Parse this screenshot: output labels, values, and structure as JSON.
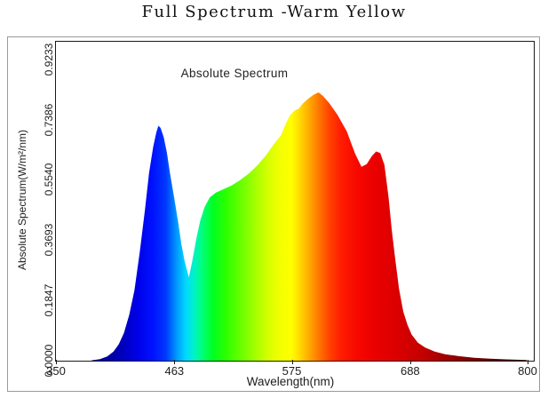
{
  "title": "Full Spectrum -Warm Yellow",
  "chart": {
    "annotation": "Absolute Spectrum",
    "xlabel": "Wavelength(nm)",
    "ylabel": "Absolute Spectrum(W/m²/nm)"
  },
  "colors": {
    "background": "#ffffff",
    "text": "#1c1c1c",
    "figure_border": "#9a9a9a",
    "axis": "#1a1a1a"
  },
  "chart_data": {
    "type": "area",
    "title": "Absolute Spectrum",
    "xlabel": "Wavelength(nm)",
    "ylabel": "Absolute Spectrum(W/m²/nm)",
    "unit": "W/m²/nm",
    "xlim": [
      350,
      800
    ],
    "ylim": [
      0,
      0.9771
    ],
    "grid": false,
    "legend": false,
    "x_ticks": [
      {
        "label": "350",
        "value": 350
      },
      {
        "label": "463",
        "value": 463
      },
      {
        "label": "575",
        "value": 575
      },
      {
        "label": "688",
        "value": 688
      },
      {
        "label": "800",
        "value": 800
      }
    ],
    "y_ticks": [
      {
        "label": "0.0000",
        "value": 0.0
      },
      {
        "label": "0.1847",
        "value": 0.1847
      },
      {
        "label": "0.3693",
        "value": 0.3693
      },
      {
        "label": "0.5540",
        "value": 0.554
      },
      {
        "label": "0.7386",
        "value": 0.7386
      },
      {
        "label": "0.9233",
        "value": 0.9233
      }
    ],
    "features": {
      "blue_peak": {
        "wavelength_nm": 448,
        "value": 0.72
      },
      "valley": {
        "wavelength_nm": 477,
        "value": 0.255
      },
      "main_peak": {
        "wavelength_nm": 601,
        "value": 0.822
      },
      "local_min": {
        "wavelength_nm": 642,
        "value": 0.594
      },
      "secondary_red_peak": {
        "wavelength_nm": 659,
        "value": 0.641
      }
    },
    "points": [
      [
        384,
        0.001
      ],
      [
        392,
        0.005
      ],
      [
        399,
        0.013
      ],
      [
        405,
        0.028
      ],
      [
        410,
        0.05
      ],
      [
        415,
        0.085
      ],
      [
        420,
        0.14
      ],
      [
        425,
        0.215
      ],
      [
        430,
        0.33
      ],
      [
        435,
        0.46
      ],
      [
        439,
        0.575
      ],
      [
        443,
        0.655
      ],
      [
        446,
        0.7
      ],
      [
        448,
        0.72
      ],
      [
        450,
        0.713
      ],
      [
        453,
        0.685
      ],
      [
        456,
        0.638
      ],
      [
        459,
        0.575
      ],
      [
        463,
        0.5
      ],
      [
        467,
        0.42
      ],
      [
        470,
        0.355
      ],
      [
        473,
        0.305
      ],
      [
        477,
        0.255
      ],
      [
        480,
        0.3
      ],
      [
        484,
        0.37
      ],
      [
        488,
        0.43
      ],
      [
        492,
        0.47
      ],
      [
        497,
        0.5
      ],
      [
        503,
        0.515
      ],
      [
        510,
        0.525
      ],
      [
        518,
        0.537
      ],
      [
        526,
        0.553
      ],
      [
        535,
        0.575
      ],
      [
        543,
        0.6
      ],
      [
        551,
        0.63
      ],
      [
        558,
        0.662
      ],
      [
        565,
        0.69
      ],
      [
        570,
        0.728
      ],
      [
        574,
        0.753
      ],
      [
        578,
        0.766
      ],
      [
        582,
        0.772
      ],
      [
        586,
        0.788
      ],
      [
        591,
        0.802
      ],
      [
        596,
        0.814
      ],
      [
        601,
        0.822
      ],
      [
        605,
        0.812
      ],
      [
        611,
        0.79
      ],
      [
        619,
        0.754
      ],
      [
        628,
        0.703
      ],
      [
        636,
        0.634
      ],
      [
        642,
        0.594
      ],
      [
        647,
        0.602
      ],
      [
        652,
        0.627
      ],
      [
        656,
        0.641
      ],
      [
        660,
        0.636
      ],
      [
        664,
        0.6
      ],
      [
        668,
        0.5
      ],
      [
        671,
        0.4
      ],
      [
        674,
        0.32
      ],
      [
        678,
        0.22
      ],
      [
        682,
        0.15
      ],
      [
        686,
        0.11
      ],
      [
        690,
        0.08
      ],
      [
        696,
        0.055
      ],
      [
        703,
        0.04
      ],
      [
        712,
        0.028
      ],
      [
        722,
        0.02
      ],
      [
        735,
        0.014
      ],
      [
        750,
        0.009
      ],
      [
        765,
        0.006
      ],
      [
        780,
        0.004
      ],
      [
        800,
        0.002
      ]
    ],
    "gradient_stops": [
      {
        "wavelength": 380,
        "color": "#000080"
      },
      {
        "wavelength": 412,
        "color": "#0000b8"
      },
      {
        "wavelength": 428,
        "color": "#0000e8"
      },
      {
        "wavelength": 443,
        "color": "#0012ff"
      },
      {
        "wavelength": 455,
        "color": "#0038ff"
      },
      {
        "wavelength": 465,
        "color": "#0096ff"
      },
      {
        "wavelength": 474,
        "color": "#00d8ff"
      },
      {
        "wavelength": 482,
        "color": "#00f2c8"
      },
      {
        "wavelength": 490,
        "color": "#00ff78"
      },
      {
        "wavelength": 500,
        "color": "#00ff24"
      },
      {
        "wavelength": 512,
        "color": "#2aff00"
      },
      {
        "wavelength": 527,
        "color": "#6aff00"
      },
      {
        "wavelength": 541,
        "color": "#a6ff00"
      },
      {
        "wavelength": 553,
        "color": "#d6ff00"
      },
      {
        "wavelength": 564,
        "color": "#f2ff00"
      },
      {
        "wavelength": 575,
        "color": "#ffff00"
      },
      {
        "wavelength": 584,
        "color": "#ffd400"
      },
      {
        "wavelength": 593,
        "color": "#ffa400"
      },
      {
        "wavelength": 602,
        "color": "#ff7300"
      },
      {
        "wavelength": 612,
        "color": "#ff4000"
      },
      {
        "wavelength": 622,
        "color": "#ff1e00"
      },
      {
        "wavelength": 638,
        "color": "#f70800"
      },
      {
        "wavelength": 655,
        "color": "#ea0000"
      },
      {
        "wavelength": 678,
        "color": "#d90000"
      },
      {
        "wavelength": 700,
        "color": "#c40000"
      },
      {
        "wavelength": 720,
        "color": "#a30000"
      },
      {
        "wavelength": 745,
        "color": "#7c0000"
      },
      {
        "wavelength": 770,
        "color": "#550000"
      },
      {
        "wavelength": 800,
        "color": "#2e0000"
      }
    ]
  }
}
